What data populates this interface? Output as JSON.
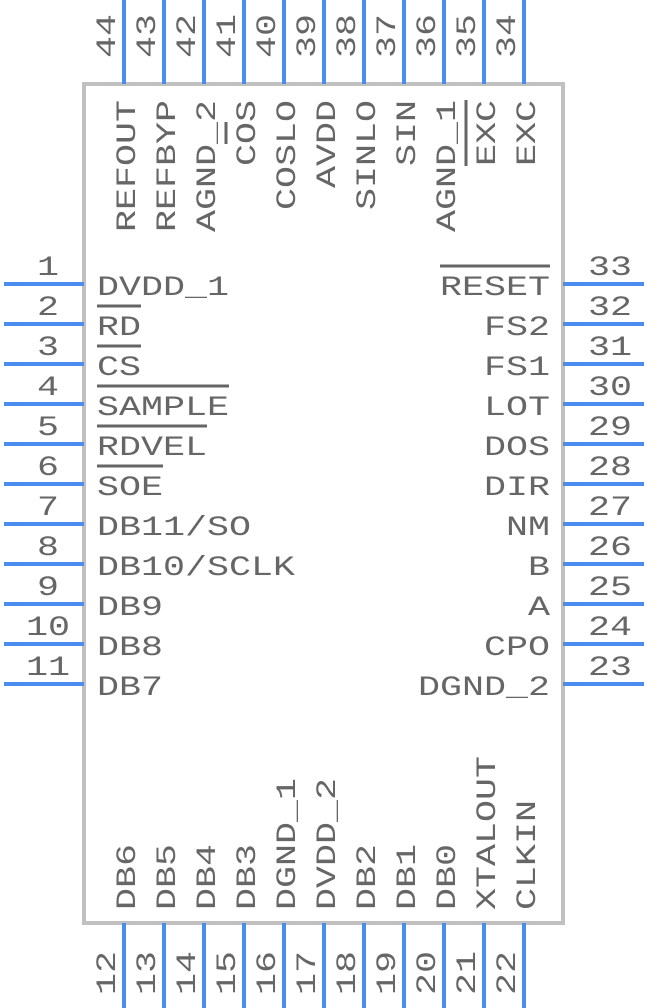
{
  "colors": {
    "pin": "#4a8cf0",
    "body": "#c0c0c0",
    "text": "#666666",
    "background": "#ffffff"
  },
  "pins": {
    "left": [
      {
        "number": "1",
        "name": "DVDD_1"
      },
      {
        "number": "2",
        "name": "RD",
        "overbar": [
          0,
          2
        ]
      },
      {
        "number": "3",
        "name": "CS",
        "overbar": [
          0,
          2
        ]
      },
      {
        "number": "4",
        "name": "SAMPLE",
        "overbar": [
          0,
          6
        ]
      },
      {
        "number": "5",
        "name": "RDVEL",
        "overbar": [
          0,
          5
        ]
      },
      {
        "number": "6",
        "name": "SOE",
        "overbar": [
          0,
          3
        ]
      },
      {
        "number": "7",
        "name": "DB11/SO"
      },
      {
        "number": "8",
        "name": "DB10/SCLK"
      },
      {
        "number": "9",
        "name": "DB9"
      },
      {
        "number": "10",
        "name": "DB8"
      },
      {
        "number": "11",
        "name": "DB7"
      }
    ],
    "bottom": [
      {
        "number": "12",
        "name": "DB6"
      },
      {
        "number": "13",
        "name": "DB5"
      },
      {
        "number": "14",
        "name": "DB4"
      },
      {
        "number": "15",
        "name": "DB3"
      },
      {
        "number": "16",
        "name": "DGND_1"
      },
      {
        "number": "17",
        "name": "DVDD_2"
      },
      {
        "number": "18",
        "name": "DB2"
      },
      {
        "number": "19",
        "name": "DB1"
      },
      {
        "number": "20",
        "name": "DB0"
      },
      {
        "number": "21",
        "name": "XTALOUT"
      },
      {
        "number": "22",
        "name": "CLKIN"
      }
    ],
    "right": [
      {
        "number": "33",
        "name": "RESET",
        "overbar": [
          0,
          5
        ]
      },
      {
        "number": "32",
        "name": "FS2"
      },
      {
        "number": "31",
        "name": "FS1"
      },
      {
        "number": "30",
        "name": "LOT"
      },
      {
        "number": "29",
        "name": "DOS"
      },
      {
        "number": "28",
        "name": "DIR"
      },
      {
        "number": "27",
        "name": "NM"
      },
      {
        "number": "26",
        "name": "B"
      },
      {
        "number": "25",
        "name": "A"
      },
      {
        "number": "24",
        "name": "CPO"
      },
      {
        "number": "23",
        "name": "DGND_2"
      }
    ],
    "top": [
      {
        "number": "44",
        "name": "REFOUT"
      },
      {
        "number": "43",
        "name": "REFBYP"
      },
      {
        "number": "42",
        "name": "AGND_2"
      },
      {
        "number": "41",
        "name": "COS",
        "overbar": [
          1,
          2
        ]
      },
      {
        "number": "40",
        "name": "COSLO"
      },
      {
        "number": "39",
        "name": "AVDD"
      },
      {
        "number": "38",
        "name": "SINLO"
      },
      {
        "number": "37",
        "name": "SIN"
      },
      {
        "number": "36",
        "name": "AGND_1"
      },
      {
        "number": "35",
        "name": "EXC",
        "overbar": [
          0,
          3
        ]
      },
      {
        "number": "34",
        "name": "EXC"
      }
    ]
  }
}
